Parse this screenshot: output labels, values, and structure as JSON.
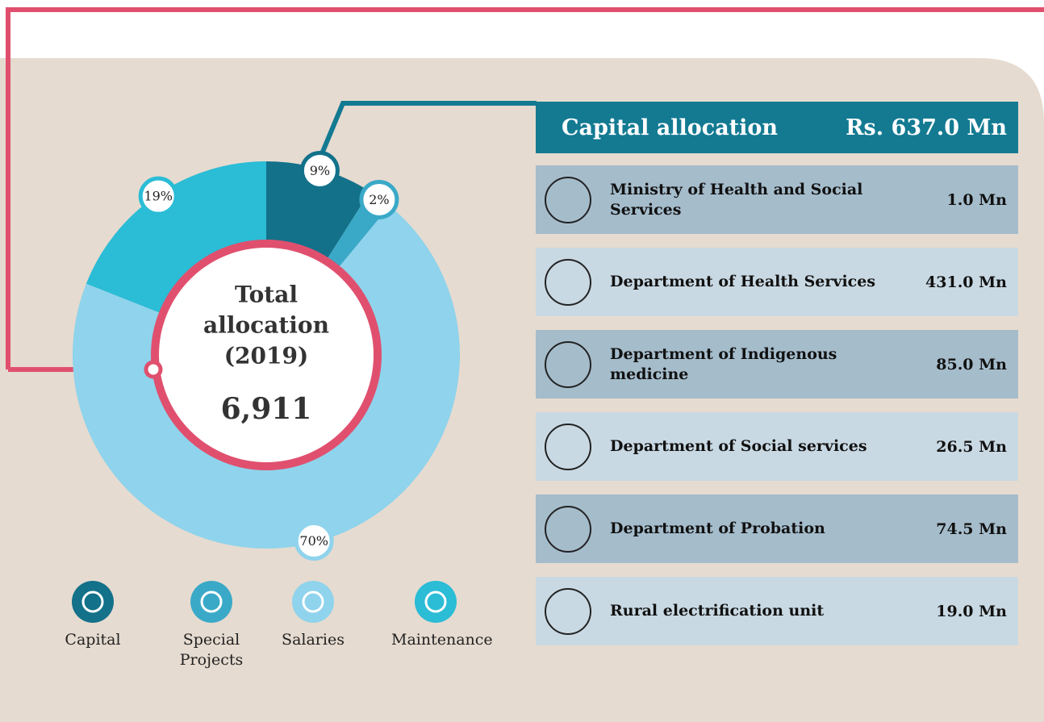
{
  "chart_data": {
    "type": "donut",
    "categories": [
      "Capital",
      "Special Projects",
      "Salaries",
      "Maintenance"
    ],
    "values": [
      9,
      2,
      70,
      19
    ],
    "value_labels": [
      "9%",
      "2%",
      "70%",
      "19%"
    ],
    "colors": [
      "#13718a",
      "#3aa9c8",
      "#8fd3ec",
      "#2bbcd6"
    ],
    "center_lines": [
      "Total",
      "allocation",
      "(2019)"
    ],
    "center_value": "6,911"
  },
  "panel": {
    "title": "Capital allocation",
    "total": "Rs. 637.0  Mn",
    "rows": [
      {
        "name": "Ministry of Health  and Social Services",
        "amount": "1.0 Mn"
      },
      {
        "name": "Department of Health Services",
        "amount": "431.0 Mn"
      },
      {
        "name": "Department of Indigenous medicine",
        "amount": "85.0 Mn"
      },
      {
        "name": "Department of Social services",
        "amount": "26.5 Mn"
      },
      {
        "name": "Department of Probation",
        "amount": "74.5 Mn"
      },
      {
        "name": "Rural electrification  unit",
        "amount": "19.0 Mn"
      }
    ]
  }
}
